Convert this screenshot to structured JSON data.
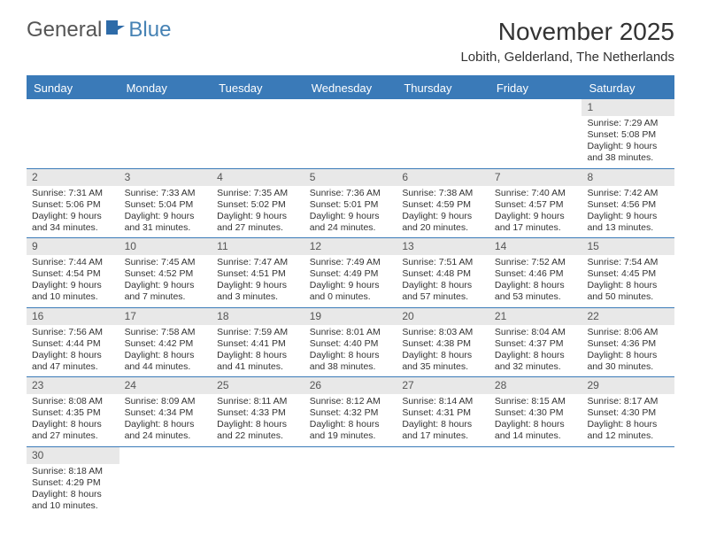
{
  "logo": {
    "part1": "General",
    "part2": "Blue"
  },
  "title": "November 2025",
  "location": "Lobith, Gelderland, The Netherlands",
  "weekdays": [
    "Sunday",
    "Monday",
    "Tuesday",
    "Wednesday",
    "Thursday",
    "Friday",
    "Saturday"
  ],
  "colors": {
    "header_bg": "#3a7ab8",
    "header_text": "#ffffff",
    "daynum_bg": "#e8e8e8",
    "border": "#3a7ab8"
  },
  "weeks": [
    [
      null,
      null,
      null,
      null,
      null,
      null,
      {
        "n": "1",
        "sunrise": "Sunrise: 7:29 AM",
        "sunset": "Sunset: 5:08 PM",
        "day1": "Daylight: 9 hours",
        "day2": "and 38 minutes."
      }
    ],
    [
      {
        "n": "2",
        "sunrise": "Sunrise: 7:31 AM",
        "sunset": "Sunset: 5:06 PM",
        "day1": "Daylight: 9 hours",
        "day2": "and 34 minutes."
      },
      {
        "n": "3",
        "sunrise": "Sunrise: 7:33 AM",
        "sunset": "Sunset: 5:04 PM",
        "day1": "Daylight: 9 hours",
        "day2": "and 31 minutes."
      },
      {
        "n": "4",
        "sunrise": "Sunrise: 7:35 AM",
        "sunset": "Sunset: 5:02 PM",
        "day1": "Daylight: 9 hours",
        "day2": "and 27 minutes."
      },
      {
        "n": "5",
        "sunrise": "Sunrise: 7:36 AM",
        "sunset": "Sunset: 5:01 PM",
        "day1": "Daylight: 9 hours",
        "day2": "and 24 minutes."
      },
      {
        "n": "6",
        "sunrise": "Sunrise: 7:38 AM",
        "sunset": "Sunset: 4:59 PM",
        "day1": "Daylight: 9 hours",
        "day2": "and 20 minutes."
      },
      {
        "n": "7",
        "sunrise": "Sunrise: 7:40 AM",
        "sunset": "Sunset: 4:57 PM",
        "day1": "Daylight: 9 hours",
        "day2": "and 17 minutes."
      },
      {
        "n": "8",
        "sunrise": "Sunrise: 7:42 AM",
        "sunset": "Sunset: 4:56 PM",
        "day1": "Daylight: 9 hours",
        "day2": "and 13 minutes."
      }
    ],
    [
      {
        "n": "9",
        "sunrise": "Sunrise: 7:44 AM",
        "sunset": "Sunset: 4:54 PM",
        "day1": "Daylight: 9 hours",
        "day2": "and 10 minutes."
      },
      {
        "n": "10",
        "sunrise": "Sunrise: 7:45 AM",
        "sunset": "Sunset: 4:52 PM",
        "day1": "Daylight: 9 hours",
        "day2": "and 7 minutes."
      },
      {
        "n": "11",
        "sunrise": "Sunrise: 7:47 AM",
        "sunset": "Sunset: 4:51 PM",
        "day1": "Daylight: 9 hours",
        "day2": "and 3 minutes."
      },
      {
        "n": "12",
        "sunrise": "Sunrise: 7:49 AM",
        "sunset": "Sunset: 4:49 PM",
        "day1": "Daylight: 9 hours",
        "day2": "and 0 minutes."
      },
      {
        "n": "13",
        "sunrise": "Sunrise: 7:51 AM",
        "sunset": "Sunset: 4:48 PM",
        "day1": "Daylight: 8 hours",
        "day2": "and 57 minutes."
      },
      {
        "n": "14",
        "sunrise": "Sunrise: 7:52 AM",
        "sunset": "Sunset: 4:46 PM",
        "day1": "Daylight: 8 hours",
        "day2": "and 53 minutes."
      },
      {
        "n": "15",
        "sunrise": "Sunrise: 7:54 AM",
        "sunset": "Sunset: 4:45 PM",
        "day1": "Daylight: 8 hours",
        "day2": "and 50 minutes."
      }
    ],
    [
      {
        "n": "16",
        "sunrise": "Sunrise: 7:56 AM",
        "sunset": "Sunset: 4:44 PM",
        "day1": "Daylight: 8 hours",
        "day2": "and 47 minutes."
      },
      {
        "n": "17",
        "sunrise": "Sunrise: 7:58 AM",
        "sunset": "Sunset: 4:42 PM",
        "day1": "Daylight: 8 hours",
        "day2": "and 44 minutes."
      },
      {
        "n": "18",
        "sunrise": "Sunrise: 7:59 AM",
        "sunset": "Sunset: 4:41 PM",
        "day1": "Daylight: 8 hours",
        "day2": "and 41 minutes."
      },
      {
        "n": "19",
        "sunrise": "Sunrise: 8:01 AM",
        "sunset": "Sunset: 4:40 PM",
        "day1": "Daylight: 8 hours",
        "day2": "and 38 minutes."
      },
      {
        "n": "20",
        "sunrise": "Sunrise: 8:03 AM",
        "sunset": "Sunset: 4:38 PM",
        "day1": "Daylight: 8 hours",
        "day2": "and 35 minutes."
      },
      {
        "n": "21",
        "sunrise": "Sunrise: 8:04 AM",
        "sunset": "Sunset: 4:37 PM",
        "day1": "Daylight: 8 hours",
        "day2": "and 32 minutes."
      },
      {
        "n": "22",
        "sunrise": "Sunrise: 8:06 AM",
        "sunset": "Sunset: 4:36 PM",
        "day1": "Daylight: 8 hours",
        "day2": "and 30 minutes."
      }
    ],
    [
      {
        "n": "23",
        "sunrise": "Sunrise: 8:08 AM",
        "sunset": "Sunset: 4:35 PM",
        "day1": "Daylight: 8 hours",
        "day2": "and 27 minutes."
      },
      {
        "n": "24",
        "sunrise": "Sunrise: 8:09 AM",
        "sunset": "Sunset: 4:34 PM",
        "day1": "Daylight: 8 hours",
        "day2": "and 24 minutes."
      },
      {
        "n": "25",
        "sunrise": "Sunrise: 8:11 AM",
        "sunset": "Sunset: 4:33 PM",
        "day1": "Daylight: 8 hours",
        "day2": "and 22 minutes."
      },
      {
        "n": "26",
        "sunrise": "Sunrise: 8:12 AM",
        "sunset": "Sunset: 4:32 PM",
        "day1": "Daylight: 8 hours",
        "day2": "and 19 minutes."
      },
      {
        "n": "27",
        "sunrise": "Sunrise: 8:14 AM",
        "sunset": "Sunset: 4:31 PM",
        "day1": "Daylight: 8 hours",
        "day2": "and 17 minutes."
      },
      {
        "n": "28",
        "sunrise": "Sunrise: 8:15 AM",
        "sunset": "Sunset: 4:30 PM",
        "day1": "Daylight: 8 hours",
        "day2": "and 14 minutes."
      },
      {
        "n": "29",
        "sunrise": "Sunrise: 8:17 AM",
        "sunset": "Sunset: 4:30 PM",
        "day1": "Daylight: 8 hours",
        "day2": "and 12 minutes."
      }
    ],
    [
      {
        "n": "30",
        "sunrise": "Sunrise: 8:18 AM",
        "sunset": "Sunset: 4:29 PM",
        "day1": "Daylight: 8 hours",
        "day2": "and 10 minutes."
      },
      null,
      null,
      null,
      null,
      null,
      null
    ]
  ]
}
